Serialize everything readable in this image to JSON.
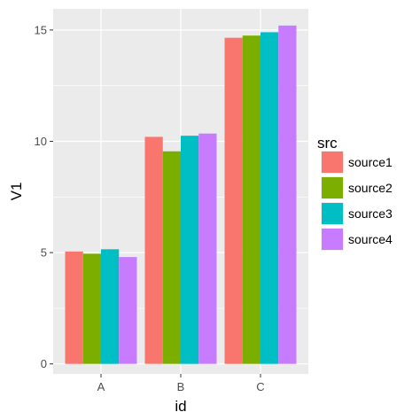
{
  "chart_data": {
    "type": "bar",
    "categories": [
      "A",
      "B",
      "C"
    ],
    "series": [
      {
        "name": "source1",
        "color": "#F8766D",
        "values": [
          5.05,
          10.2,
          14.65
        ]
      },
      {
        "name": "source2",
        "color": "#7CAE00",
        "values": [
          4.95,
          9.55,
          14.75
        ]
      },
      {
        "name": "source3",
        "color": "#00BFC4",
        "values": [
          5.15,
          10.25,
          14.9
        ]
      },
      {
        "name": "source4",
        "color": "#C77CFF",
        "values": [
          4.8,
          10.35,
          15.2
        ]
      }
    ],
    "xlabel": "id",
    "ylabel": "V1",
    "ylim": [
      -0.45,
      15.95
    ],
    "yticks": [
      0,
      5,
      10,
      15
    ],
    "grid": true,
    "legend": {
      "title": "src",
      "position": "right"
    },
    "panel_background": "#EBEBEB",
    "grid_color": "#FFFFFF"
  }
}
